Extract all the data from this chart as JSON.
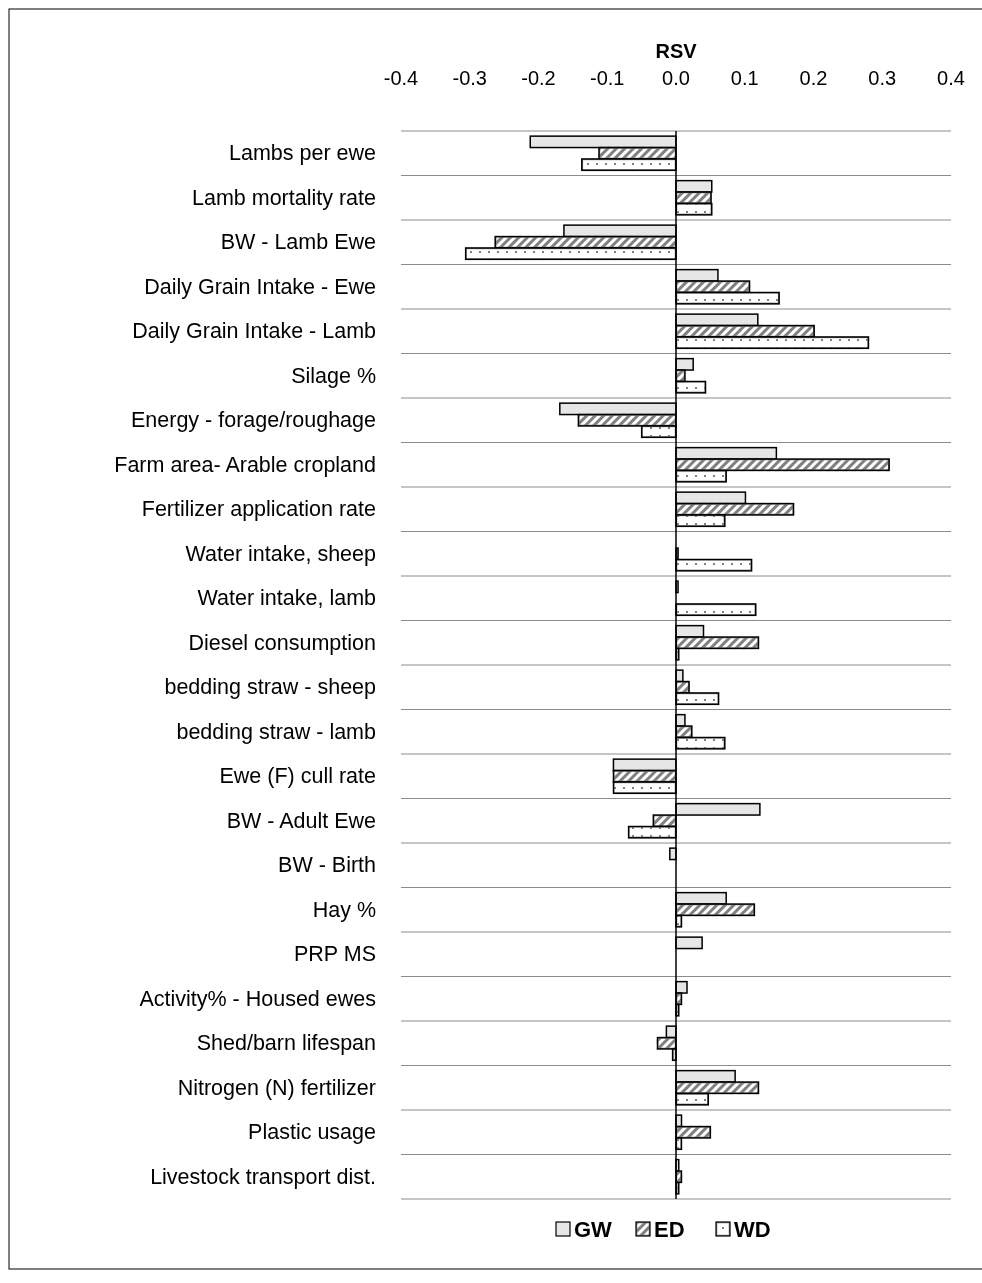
{
  "chart_data": {
    "type": "bar",
    "orientation": "horizontal",
    "xlabel": "RSV",
    "categories": [
      "Lambs per ewe",
      "Lamb mortality rate",
      "BW - Lamb Ewe",
      "Daily Grain Intake - Ewe",
      "Daily Grain Intake - Lamb",
      "Silage %",
      "Energy - forage/roughage",
      "Farm area- Arable cropland",
      "Fertilizer application rate",
      "Water intake, sheep",
      "Water intake, lamb",
      "Diesel consumption",
      "bedding straw - sheep",
      "bedding straw - lamb",
      "Ewe (F) cull rate",
      "BW - Adult Ewe",
      "BW - Birth",
      "Hay %",
      "PRP MS",
      "Activity% - Housed ewes",
      "Shed/barn lifespan",
      "Nitrogen (N) fertilizer",
      "Plastic usage",
      "Livestock transport dist."
    ],
    "series": [
      {
        "name": "GW",
        "color": "#e6e6e6",
        "values": [
          -0.212,
          0.052,
          -0.163,
          0.061,
          0.119,
          0.025,
          -0.169,
          0.146,
          0.101,
          null,
          0.003,
          0.04,
          0.01,
          0.013,
          -0.091,
          0.122,
          -0.009,
          0.073,
          0.038,
          0.016,
          -0.014,
          0.086,
          0.008,
          0.004
        ]
      },
      {
        "name": "ED",
        "color": "#808080",
        "values": [
          -0.112,
          0.051,
          -0.263,
          0.107,
          0.201,
          0.013,
          -0.142,
          0.31,
          0.171,
          0.003,
          null,
          0.12,
          0.019,
          0.023,
          -0.091,
          -0.033,
          null,
          0.114,
          0,
          0.008,
          -0.027,
          0.12,
          0.05,
          0.008
        ]
      },
      {
        "name": "WD",
        "color": "#7f7f7f",
        "values": [
          -0.137,
          0.052,
          -0.306,
          0.15,
          0.28,
          0.043,
          -0.05,
          0.073,
          0.071,
          0.11,
          0.116,
          0.004,
          0.062,
          0.071,
          -0.091,
          -0.069,
          null,
          0.008,
          0,
          0.004,
          -0.005,
          0.047,
          0.008,
          0.004
        ]
      }
    ],
    "xlim": [
      -0.4,
      0.4
    ],
    "xticks": [
      {
        "value": -0.4,
        "label": "-0.4"
      },
      {
        "value": -0.3,
        "label": "-0.3"
      },
      {
        "value": -0.2,
        "label": "-0.2"
      },
      {
        "value": -0.1,
        "label": "-0.1"
      },
      {
        "value": 0,
        "label": "0.0"
      },
      {
        "value": 0.1,
        "label": "0.1"
      },
      {
        "value": 0.2,
        "label": "0.2"
      },
      {
        "value": 0.3,
        "label": "0.3"
      },
      {
        "value": 0.4,
        "label": "0.4"
      }
    ],
    "grid": "y",
    "legend": "bottom"
  }
}
